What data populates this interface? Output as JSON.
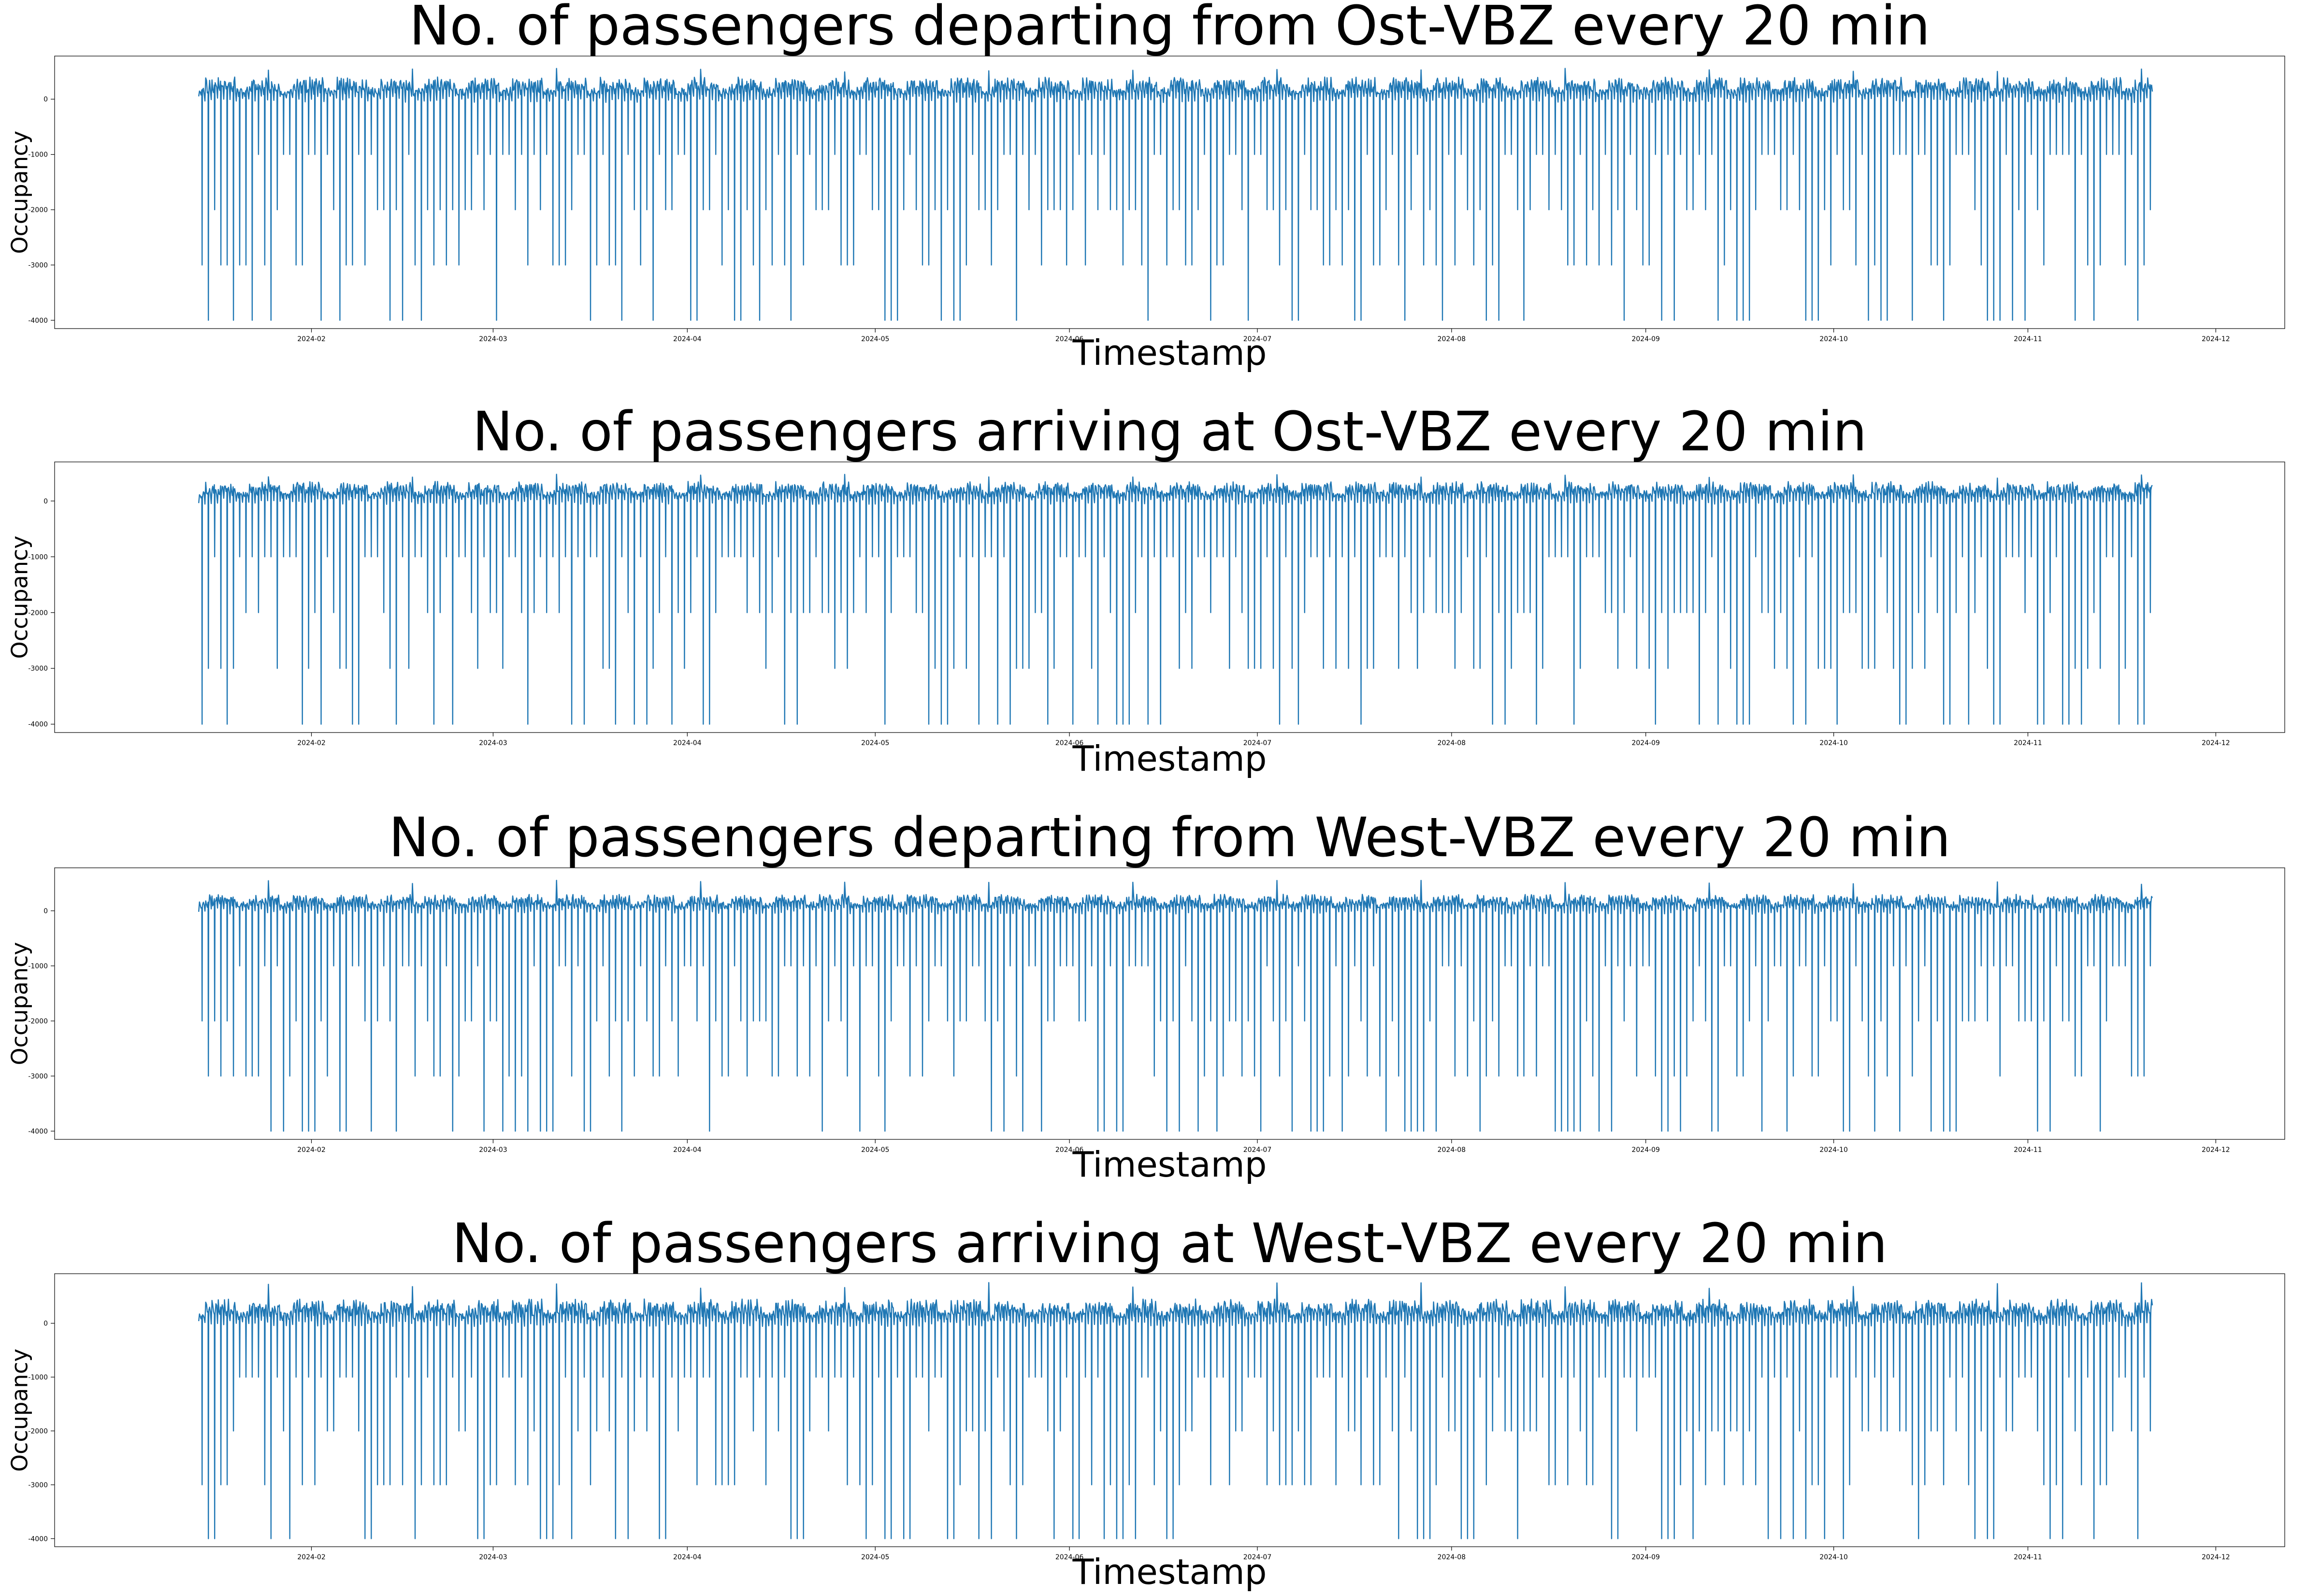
{
  "chart_data": [
    {
      "type": "line",
      "title": "No. of passengers departing from Ost-VBZ every 20 min",
      "xlabel": "Timestamp",
      "ylabel": "Occupancy",
      "x_range": [
        "2024-01-14",
        "2024-11-20"
      ],
      "xlim": [
        "2023-12-22",
        "2024-12-12"
      ],
      "ylim": [
        -4150,
        780
      ],
      "xticks": [
        "2024-02",
        "2024-03",
        "2024-04",
        "2024-05",
        "2024-06",
        "2024-07",
        "2024-08",
        "2024-09",
        "2024-10",
        "2024-11",
        "2024-12"
      ],
      "yticks": [
        0,
        -1000,
        -2000,
        -3000,
        -4000
      ],
      "line_color": "#1f77b4",
      "grid": false,
      "legend": "none",
      "typical_range": [
        0,
        400
      ],
      "peak_max": 560,
      "dip_levels": [
        -1000,
        -2000,
        -3000,
        -4000
      ]
    },
    {
      "type": "line",
      "title": "No. of passengers arriving at Ost-VBZ every 20 min",
      "xlabel": "Timestamp",
      "ylabel": "Occupancy",
      "x_range": [
        "2024-01-14",
        "2024-11-20"
      ],
      "xlim": [
        "2023-12-22",
        "2024-12-12"
      ],
      "ylim": [
        -4150,
        700
      ],
      "xticks": [
        "2024-02",
        "2024-03",
        "2024-04",
        "2024-05",
        "2024-06",
        "2024-07",
        "2024-08",
        "2024-09",
        "2024-10",
        "2024-11",
        "2024-12"
      ],
      "yticks": [
        0,
        -1000,
        -2000,
        -3000,
        -4000
      ],
      "line_color": "#1f77b4",
      "grid": false,
      "legend": "none",
      "typical_range": [
        0,
        350
      ],
      "peak_max": 480,
      "dip_levels": [
        -1000,
        -2000,
        -3000,
        -4000
      ]
    },
    {
      "type": "line",
      "title": "No. of passengers departing from West-VBZ every 20 min",
      "xlabel": "Timestamp",
      "ylabel": "Occupancy",
      "x_range": [
        "2024-01-14",
        "2024-11-20"
      ],
      "xlim": [
        "2023-12-22",
        "2024-12-12"
      ],
      "ylim": [
        -4150,
        780
      ],
      "xticks": [
        "2024-02",
        "2024-03",
        "2024-04",
        "2024-05",
        "2024-06",
        "2024-07",
        "2024-08",
        "2024-09",
        "2024-10",
        "2024-11",
        "2024-12"
      ],
      "yticks": [
        0,
        -1000,
        -2000,
        -3000,
        -4000
      ],
      "line_color": "#1f77b4",
      "grid": false,
      "legend": "none",
      "typical_range": [
        0,
        300
      ],
      "peak_max": 560,
      "dip_levels": [
        -1000,
        -2000,
        -3000,
        -4000
      ]
    },
    {
      "type": "line",
      "title": "No. of passengers arriving at West-VBZ every 20 min",
      "xlabel": "Timestamp",
      "ylabel": "Occupancy",
      "x_range": [
        "2024-01-14",
        "2024-11-20"
      ],
      "xlim": [
        "2023-12-22",
        "2024-12-12"
      ],
      "ylim": [
        -4150,
        920
      ],
      "xticks": [
        "2024-02",
        "2024-03",
        "2024-04",
        "2024-05",
        "2024-06",
        "2024-07",
        "2024-08",
        "2024-09",
        "2024-10",
        "2024-11",
        "2024-12"
      ],
      "yticks": [
        0,
        -1000,
        -2000,
        -3000,
        -4000
      ],
      "line_color": "#1f77b4",
      "grid": false,
      "legend": "none",
      "typical_range": [
        0,
        450
      ],
      "peak_max": 760,
      "dip_levels": [
        -1000,
        -2000,
        -3000,
        -4000
      ]
    }
  ]
}
